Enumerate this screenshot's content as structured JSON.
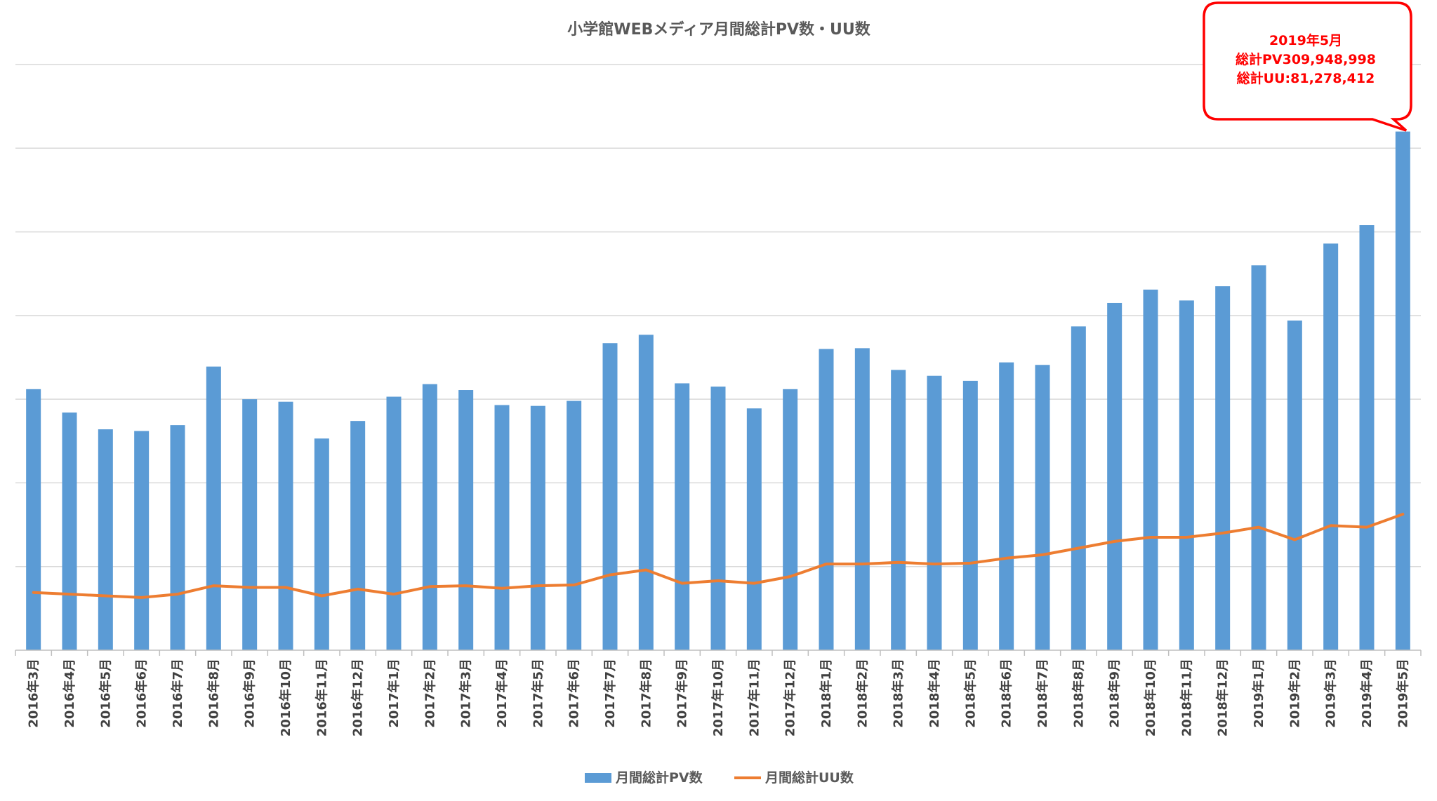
{
  "chart_data": {
    "type": "bar",
    "title": "小学館WEBメディア月間総計PV数・UU数",
    "xlabel": "",
    "ylabel": "",
    "ylim": [
      0,
      350000000
    ],
    "grid": true,
    "legend_position": "bottom",
    "categories": [
      "2016年3月",
      "2016年4月",
      "2016年5月",
      "2016年6月",
      "2016年7月",
      "2016年8月",
      "2016年9月",
      "2016年10月",
      "2016年11月",
      "2016年12月",
      "2017年1月",
      "2017年2月",
      "2017年3月",
      "2017年4月",
      "2017年5月",
      "2017年6月",
      "2017年7月",
      "2017年8月",
      "2017年9月",
      "2017年10月",
      "2017年11月",
      "2017年12月",
      "2018年1月",
      "2018年2月",
      "2018年3月",
      "2018年4月",
      "2018年5月",
      "2018年6月",
      "2018年7月",
      "2018年8月",
      "2018年9月",
      "2018年10月",
      "2018年11月",
      "2018年12月",
      "2019年1月",
      "2019年2月",
      "2019年3月",
      "2019年4月",
      "2019年5月"
    ],
    "series": [
      {
        "name": "月間総計PV数",
        "type": "bar",
        "color": "#5b9bd5",
        "values": [
          156000000,
          142000000,
          132000000,
          131000000,
          134500000,
          169500000,
          150000000,
          148500000,
          126500000,
          137000000,
          151500000,
          159000000,
          155500000,
          146500000,
          146000000,
          149000000,
          183500000,
          188500000,
          159500000,
          157500000,
          144500000,
          156000000,
          180000000,
          180500000,
          167500000,
          164000000,
          161000000,
          172000000,
          170500000,
          193500000,
          207500000,
          215500000,
          209000000,
          217500000,
          230000000,
          197000000,
          243000000,
          254000000,
          309948998
        ]
      },
      {
        "name": "月間総計UU数",
        "type": "line",
        "color": "#ed7d31",
        "values": [
          34500000,
          33500000,
          32500000,
          31500000,
          33500000,
          38500000,
          37500000,
          37500000,
          32500000,
          36500000,
          33500000,
          38000000,
          38500000,
          37000000,
          38500000,
          39000000,
          45000000,
          48000000,
          40000000,
          41500000,
          40000000,
          44000000,
          51500000,
          51500000,
          52500000,
          51500000,
          52000000,
          55000000,
          57000000,
          61000000,
          65000000,
          67500000,
          67500000,
          70000000,
          73500000,
          66000000,
          74500000,
          73500000,
          81278412
        ]
      }
    ],
    "annotation": {
      "lines": [
        "2019年5月",
        "総計PV309,948,998",
        "総計UU:81,278,412"
      ],
      "color": "#ff0000",
      "target_category": "2019年5月"
    }
  }
}
